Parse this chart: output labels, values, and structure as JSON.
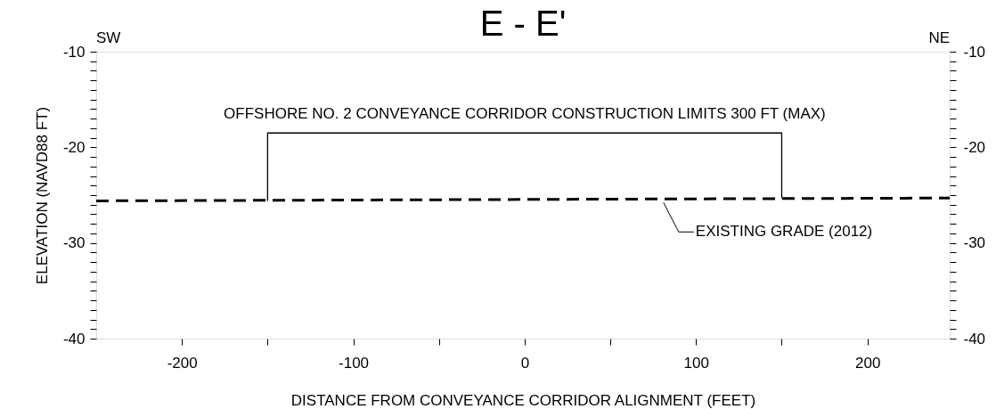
{
  "chart_data": {
    "type": "line",
    "title": "E - E'",
    "xlabel": "DISTANCE FROM CONVEYANCE CORRIDOR ALIGNMENT (FEET)",
    "ylabel": "ELEVATION (NAVD88 FT)",
    "series": [
      {
        "x": [
          -250,
          248
        ],
        "values": [
          -25.6,
          -25.3
        ],
        "color": "#000000",
        "line_style": "dashed"
      },
      {
        "x": [
          -150,
          -150,
          150,
          150
        ],
        "values": [
          -25.6,
          -18.5,
          -18.5,
          -25.3
        ],
        "color": "#000000",
        "line_style": "solid"
      }
    ],
    "annotations": [
      "SW",
      "NE",
      {
        "text": "OFFSHORE NO. 2 CONVEYANCE CORRIDOR CONSTRUCTION LIMITS 300 FT (MAX)",
        "x": 0,
        "y": -18.5
      },
      {
        "text": "EXISTING GRADE (2012)",
        "x": 80,
        "y": -25.4
      }
    ],
    "xlim": [
      -250,
      248
    ],
    "xticks": [
      -200,
      {
        "value": -150,
        "label": null
      },
      -100,
      {
        "value": -50,
        "label": null
      },
      0,
      {
        "value": 50,
        "label": null
      },
      100,
      {
        "value": 150,
        "label": null
      },
      200
    ],
    "ylim": [
      -40,
      -10
    ],
    "yticks": [
      -40,
      {
        "value": -39,
        "label": null
      },
      {
        "value": -38,
        "label": null
      },
      {
        "value": -37,
        "label": null
      },
      {
        "value": -36,
        "label": null
      },
      {
        "value": -35,
        "label": null
      },
      {
        "value": -34,
        "label": null
      },
      {
        "value": -33,
        "label": null
      },
      {
        "value": -32,
        "label": null
      },
      {
        "value": -31,
        "label": null
      },
      -30,
      {
        "value": -29,
        "label": null
      },
      {
        "value": -28,
        "label": null
      },
      {
        "value": -27,
        "label": null
      },
      {
        "value": -26,
        "label": null
      },
      {
        "value": -25,
        "label": null
      },
      {
        "value": -24,
        "label": null
      },
      {
        "value": -23,
        "label": null
      },
      {
        "value": -22,
        "label": null
      },
      {
        "value": -21,
        "label": null
      },
      -20,
      {
        "value": -19,
        "label": null
      },
      {
        "value": -18,
        "label": null
      },
      {
        "value": -17,
        "label": null
      },
      {
        "value": -16,
        "label": null
      },
      {
        "value": -15,
        "label": null
      },
      {
        "value": -14,
        "label": null
      },
      {
        "value": -13,
        "label": null
      },
      {
        "value": -12,
        "label": null
      },
      {
        "value": -11,
        "label": null
      },
      -10
    ],
    "y2lim": [
      -40,
      -10
    ],
    "y2ticks": [
      -40,
      {
        "value": -39,
        "label": null
      },
      {
        "value": -38,
        "label": null
      },
      {
        "value": -37,
        "label": null
      },
      {
        "value": -36,
        "label": null
      },
      {
        "value": -35,
        "label": null
      },
      {
        "value": -34,
        "label": null
      },
      {
        "value": -33,
        "label": null
      },
      {
        "value": -32,
        "label": null
      },
      {
        "value": -31,
        "label": null
      },
      -30,
      {
        "value": -29,
        "label": null
      },
      {
        "value": -28,
        "label": null
      },
      {
        "value": -27,
        "label": null
      },
      {
        "value": -26,
        "label": null
      },
      {
        "value": -25,
        "label": null
      },
      {
        "value": -24,
        "label": null
      },
      {
        "value": -23,
        "label": null
      },
      {
        "value": -22,
        "label": null
      },
      {
        "value": -21,
        "label": null
      },
      -20,
      {
        "value": -19,
        "label": null
      },
      {
        "value": -18,
        "label": null
      },
      {
        "value": -17,
        "label": null
      },
      {
        "value": -16,
        "label": null
      },
      {
        "value": -15,
        "label": null
      },
      {
        "value": -14,
        "label": null
      },
      {
        "value": -13,
        "label": null
      },
      {
        "value": -12,
        "label": null
      },
      {
        "value": -11,
        "label": null
      },
      -10
    ],
    "grid": false,
    "legend": false,
    "marker": "none"
  }
}
